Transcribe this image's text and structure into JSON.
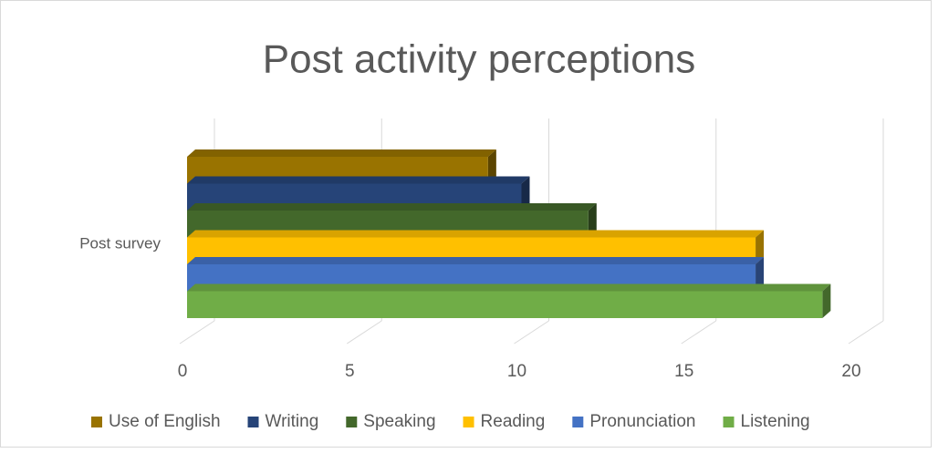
{
  "chart_data": {
    "type": "bar3d_horizontal",
    "title": "Post activity perceptions",
    "categories": [
      "Post survey"
    ],
    "series": [
      {
        "name": "Use of English",
        "color": "#997300",
        "values": [
          9
        ]
      },
      {
        "name": "Writing",
        "color": "#264478",
        "values": [
          10
        ]
      },
      {
        "name": "Speaking",
        "color": "#43682b",
        "values": [
          12
        ]
      },
      {
        "name": "Reading",
        "color": "#ffc000",
        "values": [
          17
        ]
      },
      {
        "name": "Pronunciation",
        "color": "#4472c4",
        "values": [
          17
        ]
      },
      {
        "name": "Listening",
        "color": "#70ad47",
        "values": [
          19
        ]
      }
    ],
    "xlim": [
      0,
      20
    ],
    "xticks": [
      0,
      5,
      10,
      15,
      20
    ],
    "grid": true,
    "legend": "bottom"
  }
}
